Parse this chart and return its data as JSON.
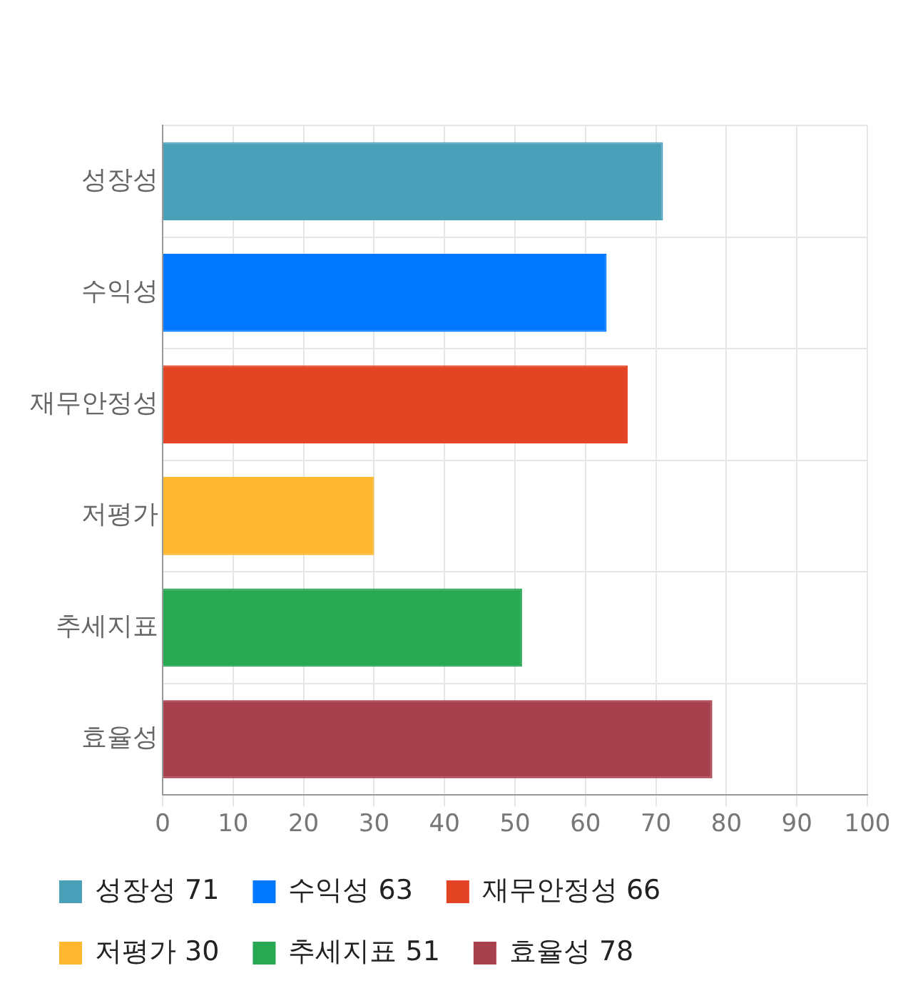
{
  "chart_data": {
    "type": "bar",
    "orientation": "horizontal",
    "categories": [
      "성장성",
      "수익성",
      "재무안정성",
      "저평가",
      "추세지표",
      "효율성"
    ],
    "series": [
      {
        "name": "성장성 71",
        "color": "#4aa0b9",
        "values": [
          71,
          null,
          null,
          null,
          null,
          null
        ]
      },
      {
        "name": "수익성 63",
        "color": "#0077ff",
        "values": [
          null,
          63,
          null,
          null,
          null,
          null
        ]
      },
      {
        "name": "재무안정성 66",
        "color": "#e24424",
        "values": [
          null,
          null,
          66,
          null,
          null,
          null
        ]
      },
      {
        "name": "저평가 30",
        "color": "#ffb830",
        "values": [
          null,
          null,
          null,
          30,
          null,
          null
        ]
      },
      {
        "name": "추세지표 51",
        "color": "#28a853",
        "values": [
          null,
          null,
          null,
          null,
          51,
          null
        ]
      },
      {
        "name": "효율성 78",
        "color": "#a8414e",
        "values": [
          null,
          null,
          null,
          null,
          null,
          78
        ]
      }
    ],
    "xlim": [
      0,
      100
    ],
    "xticks": [
      0,
      10,
      20,
      30,
      40,
      50,
      60,
      70,
      80,
      90,
      100
    ],
    "grid": true,
    "legend": "bottom"
  }
}
